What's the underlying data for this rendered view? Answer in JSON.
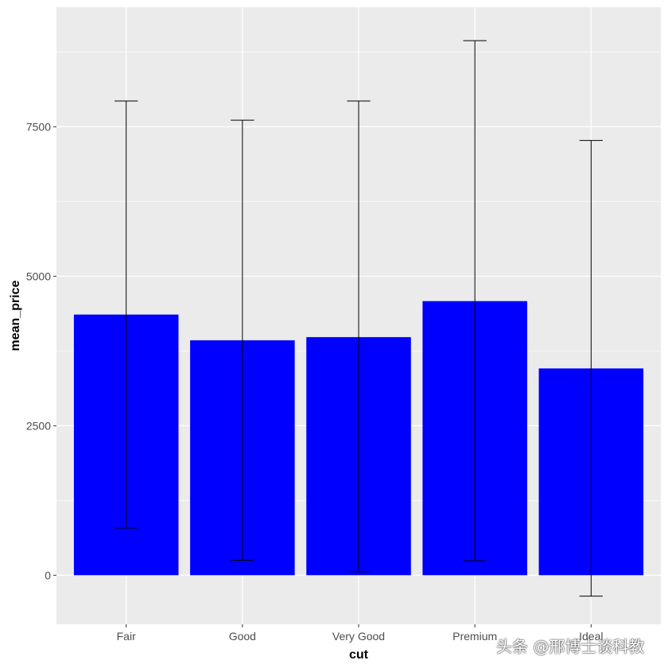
{
  "chart_data": {
    "type": "bar",
    "title": "",
    "xlabel": "cut",
    "ylabel": "mean_price",
    "categories": [
      "Fair",
      "Good",
      "Very Good",
      "Premium",
      "Ideal"
    ],
    "values": [
      4359,
      3929,
      3982,
      4584,
      3458
    ],
    "error_bars": {
      "lower": [
        790,
        250,
        60,
        240,
        -350
      ],
      "upper": [
        7930,
        7610,
        7930,
        8940,
        7270
      ]
    },
    "ylim": [
      -820,
      9500
    ],
    "yticks": [
      0,
      2500,
      5000,
      7500
    ],
    "ytick_labels": [
      "0",
      "2500",
      "5000",
      "7500"
    ],
    "grid": true,
    "colors": {
      "bar_fill": "#0000ff",
      "panel_background": "#ebebeb",
      "grid_major": "#ffffff",
      "error_bar": "#000000"
    }
  },
  "watermark": "头条 @邢博士谈科教"
}
